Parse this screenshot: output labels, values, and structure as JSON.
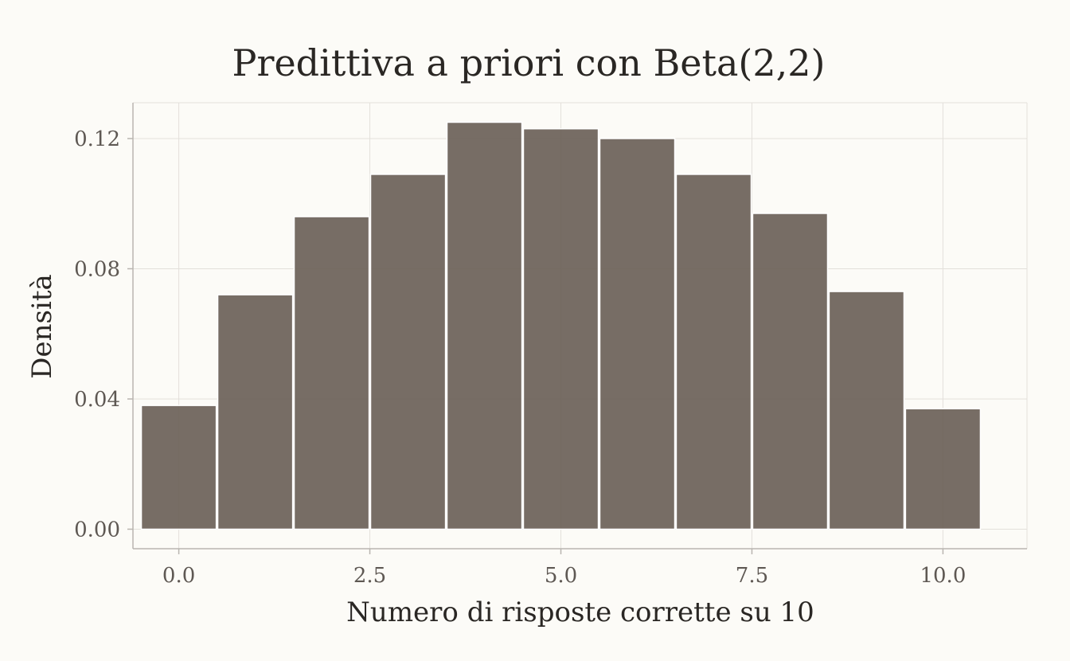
{
  "chart_data": {
    "type": "bar",
    "title": "Predittiva a priori con Beta(2,2)",
    "xlabel": "Numero di risposte corrette su 10",
    "ylabel": "Densità",
    "x": [
      0,
      1,
      2,
      3,
      4,
      5,
      6,
      7,
      8,
      9,
      10
    ],
    "values": [
      0.038,
      0.072,
      0.096,
      0.109,
      0.125,
      0.123,
      0.12,
      0.109,
      0.097,
      0.073,
      0.037
    ],
    "bar_width": 0.98,
    "xlim": [
      -0.6,
      11.1
    ],
    "ylim": [
      -0.006,
      0.131
    ],
    "xticks": [
      0,
      2.5,
      5,
      7.5,
      10
    ],
    "xtick_labels": [
      "0.0",
      "2.5",
      "5.0",
      "7.5",
      "10.0"
    ],
    "yticks": [
      0,
      0.04,
      0.08,
      0.12
    ],
    "ytick_labels": [
      "0.00",
      "0.04",
      "0.08",
      "0.12"
    ],
    "grid": true,
    "legend": "none",
    "bar_color": "#6b6158"
  }
}
